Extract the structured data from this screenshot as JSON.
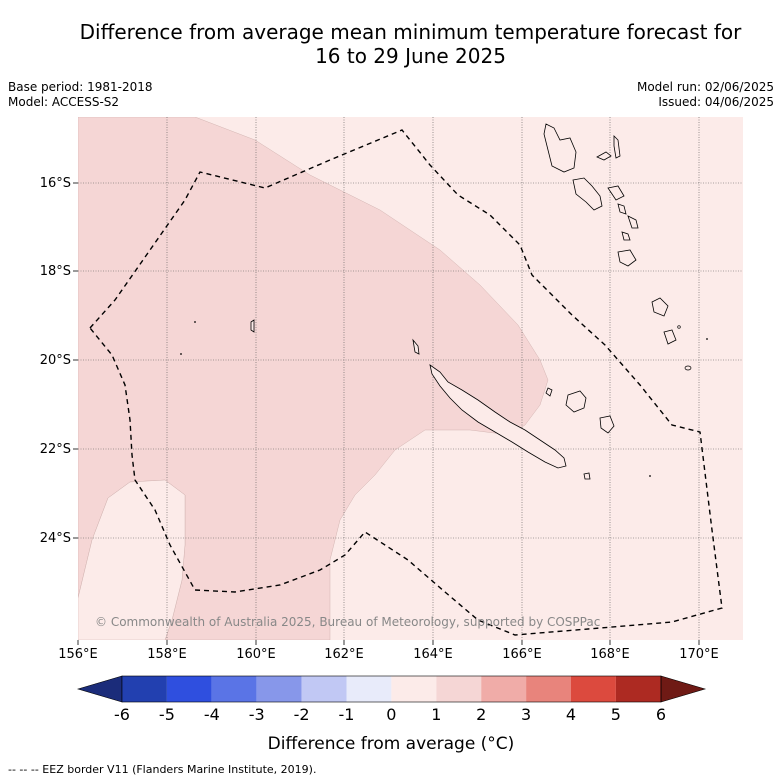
{
  "header": {
    "title_line1": "Difference from average mean minimum temperature forecast for",
    "title_line2": "16 to 29 June 2025",
    "base_period": "Base period: 1981-2018",
    "model": "Model: ACCESS-S2",
    "model_run": "Model run: 02/06/2025",
    "issued": "Issued: 04/06/2025"
  },
  "map": {
    "lon_ticks": [
      "156°E",
      "158°E",
      "160°E",
      "162°E",
      "164°E",
      "166°E",
      "168°E",
      "170°E"
    ],
    "lat_ticks": [
      "16°S",
      "18°S",
      "20°S",
      "22°S",
      "24°S"
    ],
    "copyright": "© Commonwealth of Australia 2025, Bureau of Meteorology, supported by COSPPac",
    "colors": {
      "anomaly_0_1": "#fcebe9",
      "anomaly_1_2": "#f5d6d5",
      "coast": "#000000",
      "eez_border": "#000000"
    }
  },
  "colorbar": {
    "labels": [
      "-6",
      "-5",
      "-4",
      "-3",
      "-2",
      "-1",
      "0",
      "1",
      "2",
      "3",
      "4",
      "5",
      "6"
    ],
    "colors": [
      "#1b2c7a",
      "#2240b0",
      "#2f4fdf",
      "#5a74e6",
      "#8797ea",
      "#c1c8f4",
      "#e8ebfa",
      "#fcebe9",
      "#f5d6d5",
      "#f0aca8",
      "#e8847c",
      "#dc4a3e",
      "#ad2a22",
      "#6f1a15"
    ],
    "title": "Difference from average (°C)"
  },
  "footnote": "-- -- -- EEZ border V11 (Flanders Marine Institute, 2019)."
}
